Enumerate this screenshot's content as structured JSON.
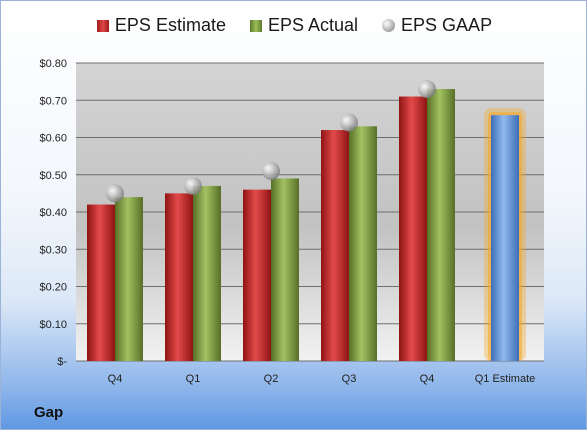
{
  "company": "Gap",
  "legend": {
    "estimate": "EPS Estimate",
    "actual": "EPS Actual",
    "gaap": "EPS GAAP"
  },
  "colors": {
    "estimate": "#c62828",
    "actual": "#8aa84a",
    "gaap": "#b0b0b0",
    "projection": "#5b8fd6",
    "projection_glow": "#f5a623"
  },
  "chart_data": {
    "type": "bar",
    "categories": [
      "Q4",
      "Q1",
      "Q2",
      "Q3",
      "Q4",
      "Q1 Estimate"
    ],
    "series": [
      {
        "name": "EPS Estimate",
        "values": [
          0.42,
          0.45,
          0.46,
          0.62,
          0.71,
          null
        ]
      },
      {
        "name": "EPS Actual",
        "values": [
          0.44,
          0.47,
          0.49,
          0.63,
          0.73,
          null
        ]
      },
      {
        "name": "EPS GAAP",
        "values": [
          0.45,
          0.47,
          0.51,
          0.64,
          0.73,
          null
        ]
      }
    ],
    "projection": {
      "category": "Q1 Estimate",
      "value": 0.66
    },
    "ylim": [
      0,
      0.8
    ],
    "yticks": [
      0,
      0.1,
      0.2,
      0.3,
      0.4,
      0.5,
      0.6,
      0.7,
      0.8
    ],
    "ytick_labels": [
      "$-",
      "$0.10",
      "$0.20",
      "$0.30",
      "$0.40",
      "$0.50",
      "$0.60",
      "$0.70",
      "$0.80"
    ],
    "grid": true,
    "legend_position": "top"
  }
}
